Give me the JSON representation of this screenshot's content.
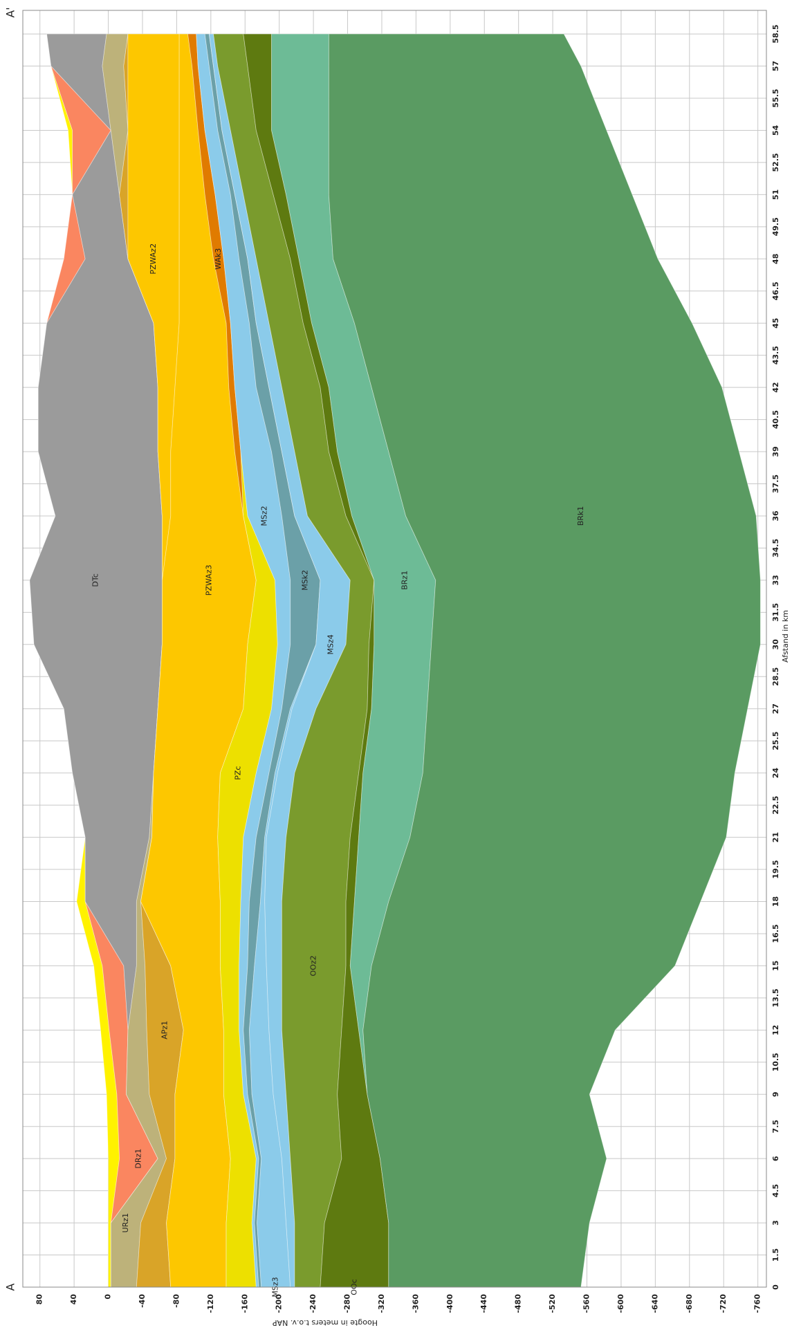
{
  "chart_data": {
    "type": "area",
    "section_start": "A",
    "section_end": "A'",
    "x_label": "Afstand in km",
    "y_label": "Hoogte in meters t.o.v. NAP",
    "xlim": [
      0,
      59.6
    ],
    "ylim": [
      -770,
      100
    ],
    "xticks": [
      0,
      1.5,
      3,
      4.5,
      6,
      7.5,
      9,
      10.5,
      12,
      13.5,
      15,
      16.5,
      18,
      19.5,
      21,
      22.5,
      24,
      25.5,
      27,
      28.5,
      30,
      31.5,
      33,
      34.5,
      36,
      37.5,
      39,
      40.5,
      42,
      43.5,
      45,
      46.5,
      48,
      49.5,
      51,
      52.5,
      54,
      55.5,
      57,
      58.5
    ],
    "yticks": [
      80,
      40,
      0,
      -40,
      -80,
      -120,
      -160,
      -200,
      -240,
      -280,
      -320,
      -360,
      -400,
      -440,
      -480,
      -520,
      -560,
      -600,
      -640,
      -680,
      -720,
      -760
    ],
    "grid": true,
    "x": [
      0,
      3,
      6,
      9,
      12,
      15,
      18,
      21,
      24,
      27,
      30,
      33,
      36,
      39,
      42,
      45,
      48,
      51,
      54,
      57,
      58.5
    ],
    "series": [
      {
        "color": "#fff200",
        "values": [
          0,
          0,
          0,
          2,
          9,
          17,
          37,
          27,
          42,
          52,
          87,
          92,
          62,
          82,
          82,
          72,
          52,
          42,
          47,
          67,
          72
        ]
      },
      {
        "name": "DRz1",
        "color": "#fa8660",
        "values": [
          -3,
          -3,
          -13,
          -10,
          -1,
          7,
          27,
          27,
          42,
          52,
          87,
          92,
          62,
          82,
          82,
          72,
          52,
          42,
          42,
          67,
          72
        ]
      },
      {
        "name": "DTc",
        "color": "#9b9b9b",
        "values": [
          -3,
          -3,
          -58,
          -21,
          -23,
          -18,
          27,
          27,
          42,
          52,
          87,
          92,
          62,
          82,
          82,
          72,
          27,
          42,
          -3,
          67,
          72
        ]
      },
      {
        "name": "URz1",
        "color": "#bdb27a",
        "values": [
          -3,
          -3,
          -58,
          -21,
          -23,
          -33,
          -33,
          -48,
          -53,
          -58,
          -63,
          -63,
          -63,
          -58,
          -58,
          -53,
          -23,
          -13,
          -3,
          7,
          2
        ]
      },
      {
        "name": "APz1",
        "color": "#d9a428",
        "values": [
          -33,
          -38,
          -68,
          -48,
          -45,
          -43,
          -38,
          -51,
          -53,
          -58,
          -63,
          -63,
          -63,
          -58,
          -58,
          -53,
          -23,
          -13,
          -23,
          -18,
          -23
        ]
      },
      {
        "name": "PZWAz2",
        "color": "#fdc700",
        "values": [
          -73,
          -68,
          -78,
          -78,
          -88,
          -73,
          -38,
          -51,
          -53,
          -58,
          -63,
          -63,
          -63,
          -58,
          -58,
          -53,
          -23,
          -23,
          -23,
          -23,
          -23
        ]
      },
      {
        "name": "PZWAz3",
        "color": "#fdc700",
        "values": [
          -73,
          -68,
          -78,
          -78,
          -88,
          -73,
          -38,
          -51,
          -53,
          -58,
          -63,
          -63,
          -73,
          -73,
          -78,
          -83,
          -83,
          -83,
          -83,
          -83,
          -83
        ]
      },
      {
        "name": "WAk3",
        "color": "#e07b00",
        "values": [
          -138,
          -138,
          -143,
          -135,
          -135,
          -131,
          -131,
          -128,
          -131,
          -158,
          -163,
          -173,
          -158,
          -148,
          -141,
          -138,
          -123,
          -113,
          -105,
          -98,
          -93
        ]
      },
      {
        "name": "PZc",
        "color": "#ede000",
        "values": [
          -138,
          -138,
          -143,
          -135,
          -135,
          -131,
          -131,
          -128,
          -131,
          -158,
          -163,
          -173,
          -158,
          -155,
          -148,
          -143,
          -135,
          -125,
          -113,
          -105,
          -103
        ]
      },
      {
        "name": "MSz2",
        "color": "#8bcbea",
        "values": [
          -173,
          -168,
          -173,
          -158,
          -153,
          -153,
          -155,
          -158,
          -173,
          -191,
          -198,
          -195,
          -163,
          -155,
          -148,
          -143,
          -135,
          -125,
          -113,
          -105,
          -103
        ]
      },
      {
        "name": "MSk2",
        "color": "#6ba0a8",
        "values": [
          -176,
          -171,
          -176,
          -163,
          -158,
          -163,
          -165,
          -173,
          -188,
          -203,
          -213,
          -213,
          -203,
          -191,
          -173,
          -165,
          -153,
          -143,
          -128,
          -118,
          -113
        ]
      },
      {
        "name": "MSz3",
        "color": "#8bcbea",
        "values": [
          -179,
          -174,
          -179,
          -168,
          -165,
          -171,
          -178,
          -183,
          -195,
          -213,
          -243,
          -248,
          -218,
          -203,
          -188,
          -173,
          -163,
          -148,
          -133,
          -123,
          -118
        ]
      },
      {
        "name": "MSz4",
        "color": "#8bcbea",
        "values": [
          -213,
          -208,
          -203,
          -193,
          -188,
          -185,
          -183,
          -185,
          -198,
          -215,
          -243,
          -248,
          -218,
          -203,
          -188,
          -173,
          -163,
          -148,
          -133,
          -123,
          -118
        ]
      },
      {
        "name": "OOz2",
        "color": "#7a9b2d",
        "values": [
          -218,
          -218,
          -213,
          -208,
          -203,
          -203,
          -203,
          -208,
          -218,
          -243,
          -278,
          -283,
          -233,
          -218,
          -203,
          -188,
          -173,
          -158,
          -143,
          -128,
          -123
        ]
      },
      {
        "name": "OOc",
        "color": "#5e7a10",
        "values": [
          -248,
          -253,
          -273,
          -268,
          -273,
          -278,
          -278,
          -283,
          -293,
          -303,
          -305,
          -311,
          -278,
          -258,
          -248,
          -228,
          -213,
          -193,
          -173,
          -163,
          -158
        ]
      },
      {
        "name": "BRz1",
        "color": "#6dbb96",
        "values": [
          -328,
          -328,
          -318,
          -303,
          -293,
          -283,
          -288,
          -293,
          -298,
          -308,
          -311,
          -311,
          -285,
          -268,
          -258,
          -238,
          -223,
          -208,
          -191,
          -191,
          -191
        ]
      },
      {
        "name": "BRk1",
        "color": "#5a9b62",
        "values": [
          -328,
          -328,
          -318,
          -303,
          -298,
          -308,
          -328,
          -353,
          -368,
          -373,
          -378,
          -383,
          -348,
          -328,
          -308,
          -288,
          -263,
          -258,
          -258,
          -258,
          -258
        ]
      }
    ],
    "base": [
      -553,
      -563,
      -583,
      -563,
      -593,
      -663,
      -693,
      -723,
      -733,
      -748,
      -763,
      -763,
      -758,
      -738,
      -718,
      -683,
      -643,
      -613,
      -583,
      -553,
      -533
    ]
  }
}
